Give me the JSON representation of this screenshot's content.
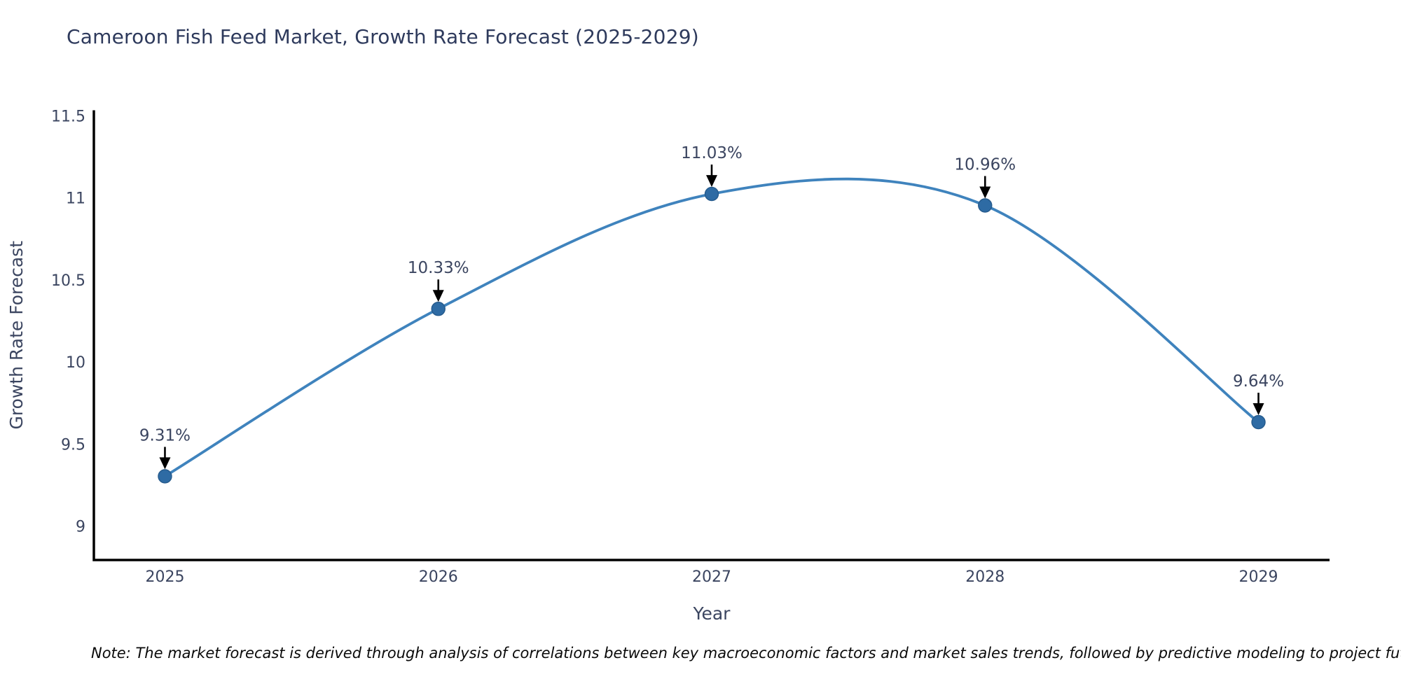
{
  "note": "Note: The market forecast is derived through analysis of correlations between key macroeconomic factors and market sales trends, followed by predictive modeling to project future sal",
  "chart_data": {
    "type": "line",
    "line_shape": "spline",
    "title": "Cameroon Fish Feed Market, Growth Rate Forecast (2025-2029)",
    "xlabel": "Year",
    "ylabel": "Growth Rate Forecast",
    "x": [
      2025,
      2026,
      2027,
      2028,
      2029
    ],
    "values": [
      9.31,
      10.33,
      11.03,
      10.96,
      9.64
    ],
    "point_labels": [
      "9.31%",
      "10.33%",
      "11.03%",
      "10.96%",
      "9.64%"
    ],
    "xticks": [
      2025,
      2026,
      2027,
      2028,
      2029
    ],
    "yticks": [
      9,
      9.5,
      10,
      10.5,
      11,
      11.5
    ],
    "xlim": [
      2024.74,
      2029.26
    ],
    "ylim": [
      8.8,
      11.54
    ],
    "grid": false,
    "legend": false,
    "annotations_have_arrows": true,
    "colors": {
      "line": "#3f83bd",
      "marker_fill": "#2e6ba4",
      "marker_edge": "#255a8c",
      "axis_line": "#000000",
      "tick_text": "#3b4560",
      "title_text": "#2e3a5c",
      "annotation_text": "#3b4560",
      "arrow": "#000000",
      "background": "#ffffff"
    }
  }
}
